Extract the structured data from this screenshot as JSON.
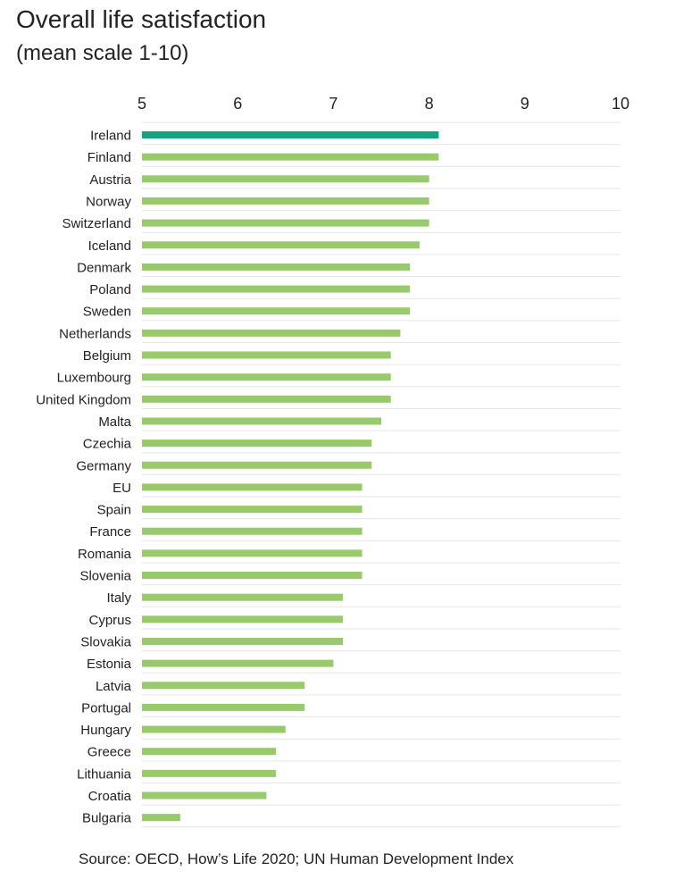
{
  "header": {
    "title": "Overall life satisfaction",
    "subtitle": "(mean scale 1-10)"
  },
  "footer": {
    "source": "Source: OECD, How’s Life 2020; UN Human Development Index"
  },
  "colors": {
    "highlight_bar": "#12a37f",
    "bar": "#98c96a",
    "grid": "#e6e6e6",
    "text": "#222222"
  },
  "chart_data": {
    "type": "bar",
    "orientation": "horizontal",
    "title": "Overall life satisfaction",
    "subtitle": "(mean scale 1-10)",
    "xlabel": "",
    "ylabel": "",
    "xlim": [
      5,
      10
    ],
    "x_ticks": [
      "5",
      "6",
      "7",
      "8",
      "9",
      "10"
    ],
    "x_axis_position": "top",
    "grid": true,
    "highlight": "Ireland",
    "categories": [
      "Ireland",
      "Finland",
      "Austria",
      "Norway",
      "Switzerland",
      "Iceland",
      "Denmark",
      "Poland",
      "Sweden",
      "Netherlands",
      "Belgium",
      "Luxembourg",
      "United Kingdom",
      "Malta",
      "Czechia",
      "Germany",
      "EU",
      "Spain",
      "France",
      "Romania",
      "Slovenia",
      "Italy",
      "Cyprus",
      "Slovakia",
      "Estonia",
      "Latvia",
      "Portugal",
      "Hungary",
      "Greece",
      "Lithuania",
      "Croatia",
      "Bulgaria"
    ],
    "values": [
      8.1,
      8.1,
      8.0,
      8.0,
      8.0,
      7.9,
      7.8,
      7.8,
      7.8,
      7.7,
      7.6,
      7.6,
      7.6,
      7.5,
      7.4,
      7.4,
      7.3,
      7.3,
      7.3,
      7.3,
      7.3,
      7.1,
      7.1,
      7.1,
      7.0,
      6.7,
      6.7,
      6.5,
      6.4,
      6.4,
      6.3,
      5.4
    ]
  }
}
